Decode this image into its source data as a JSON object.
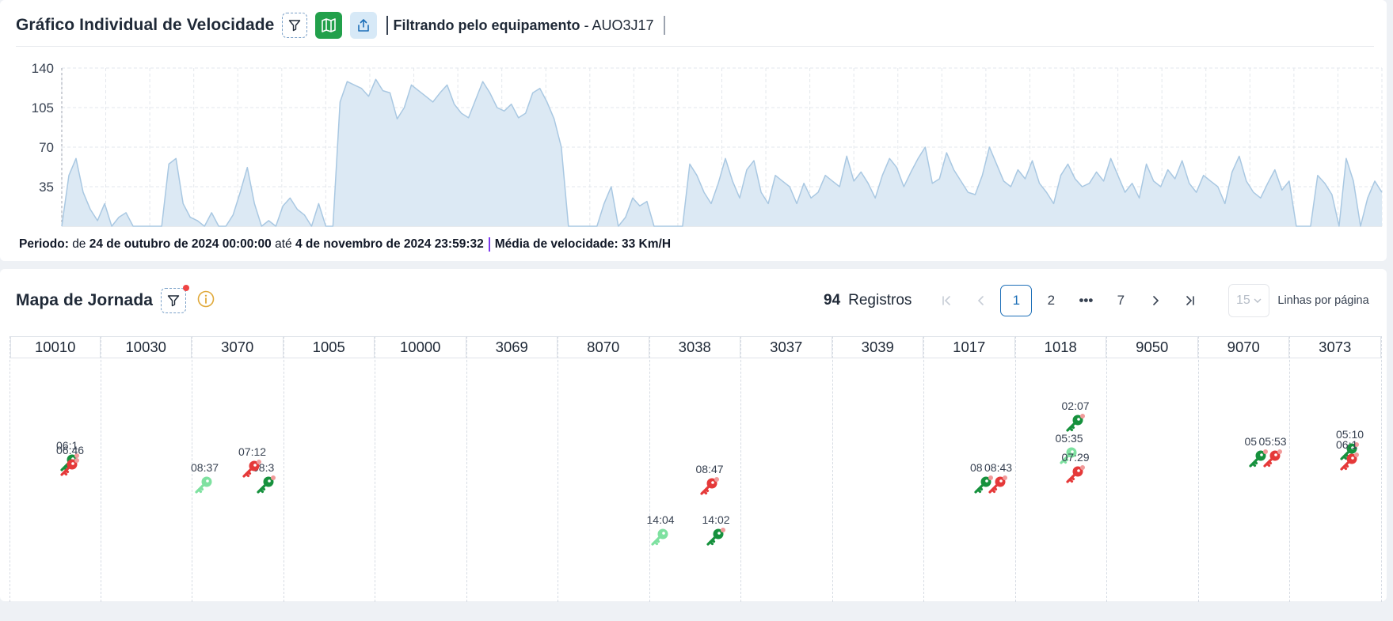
{
  "speed_panel": {
    "title": "Gráfico Individual de Velocidade",
    "filter_prefix": "Filtrando pelo equipamento",
    "filter_sep": " - ",
    "filter_value": "AUO3J17",
    "icons": [
      "filter-icon",
      "map-icon",
      "share-icon"
    ],
    "footer": {
      "periodo_label": "Periodo:",
      "de": "de",
      "start": "24 de outubro de 2024 00:00:00",
      "ate": "até",
      "end": "4 de novembro de 2024 23:59:32",
      "media_label": "Média de velocidade:",
      "media_value": "33 Km/H"
    }
  },
  "chart_data": {
    "type": "area",
    "title": "",
    "xlabel": "",
    "ylabel": "",
    "ylim": [
      0,
      140
    ],
    "yticks": [
      35,
      70,
      105,
      140
    ],
    "grid": true,
    "legend": "none",
    "color": "#a9c8e2",
    "fill": "#dce9f4",
    "series": [
      {
        "values": [
          0,
          45,
          60,
          30,
          15,
          5,
          20,
          0,
          8,
          12,
          0,
          0,
          0,
          0,
          0,
          55,
          60,
          20,
          8,
          5,
          0,
          12,
          0,
          0,
          10,
          30,
          52,
          20,
          0,
          5,
          0,
          18,
          25,
          15,
          10,
          0,
          20,
          0,
          0,
          110,
          128,
          125,
          122,
          115,
          130,
          120,
          118,
          95,
          105,
          125,
          120,
          115,
          110,
          118,
          125,
          108,
          100,
          96,
          112,
          128,
          118,
          105,
          102,
          108,
          96,
          100,
          118,
          122,
          110,
          95,
          70,
          0,
          0,
          0,
          0,
          0,
          20,
          35,
          0,
          8,
          25,
          18,
          22,
          0,
          0,
          0,
          0,
          0,
          55,
          45,
          30,
          20,
          38,
          60,
          40,
          25,
          50,
          58,
          30,
          20,
          45,
          40,
          35,
          20,
          38,
          25,
          30,
          45,
          40,
          35,
          62,
          40,
          48,
          38,
          25,
          45,
          60,
          52,
          35,
          48,
          60,
          70,
          38,
          42,
          65,
          50,
          40,
          30,
          28,
          45,
          70,
          55,
          40,
          35,
          50,
          42,
          58,
          38,
          30,
          20,
          45,
          55,
          42,
          35,
          38,
          48,
          40,
          60,
          45,
          30,
          38,
          25,
          55,
          40,
          35,
          50,
          42,
          58,
          38,
          30,
          45,
          40,
          35,
          20,
          48,
          62,
          40,
          30,
          25,
          38,
          50,
          32,
          40,
          0,
          0,
          0,
          45,
          38,
          28,
          0,
          60,
          40,
          0,
          25,
          40,
          30
        ]
      }
    ]
  },
  "map_panel": {
    "title": "Mapa de Jornada",
    "icons": [
      "filter-icon",
      "info-icon"
    ],
    "registros_count": "94",
    "registros_label": "Registros",
    "pagination": {
      "pages": [
        "1",
        "2",
        "•••",
        "7"
      ],
      "current": "1"
    },
    "per_page_value": "15",
    "per_page_label": "Linhas por página",
    "columns": [
      "10010",
      "10030",
      "3070",
      "1005",
      "10000",
      "3069",
      "8070",
      "3038",
      "3037",
      "3039",
      "1017",
      "1018",
      "9050",
      "9070",
      "3073"
    ],
    "events": [
      {
        "col": 0,
        "time": "06:1",
        "kind": "on",
        "level": 102
      },
      {
        "col": 0,
        "time": "06:46",
        "kind": "off",
        "level": 108
      },
      {
        "col": 2,
        "time": "08:37",
        "kind": "light",
        "level": 130
      },
      {
        "col": 2,
        "time": "08:3",
        "kind": "on",
        "level": 130
      },
      {
        "col": 2,
        "time": "07:12",
        "kind": "off",
        "level": 110
      },
      {
        "col": 7,
        "time": "14:04",
        "kind": "light",
        "level": 196
      },
      {
        "col": 7,
        "time": "14:02",
        "kind": "on",
        "level": 196
      },
      {
        "col": 7,
        "time": "08:47",
        "kind": "off",
        "level": 132
      },
      {
        "col": 10,
        "time": "08",
        "kind": "on",
        "level": 130
      },
      {
        "col": 10,
        "time": "08:43",
        "kind": "off",
        "level": 130
      },
      {
        "col": 11,
        "time": "05:35",
        "kind": "light",
        "level": 93
      },
      {
        "col": 11,
        "time": "02:07",
        "kind": "on",
        "level": 52
      },
      {
        "col": 11,
        "time": "07:29",
        "kind": "off",
        "level": 117
      },
      {
        "col": 13,
        "time": "05",
        "kind": "on",
        "level": 97
      },
      {
        "col": 13,
        "time": "05:53",
        "kind": "off",
        "level": 97
      },
      {
        "col": 14,
        "time": "05:10",
        "kind": "on",
        "level": 88
      },
      {
        "col": 14,
        "time": "06:1",
        "kind": "off",
        "level": 101
      }
    ]
  }
}
